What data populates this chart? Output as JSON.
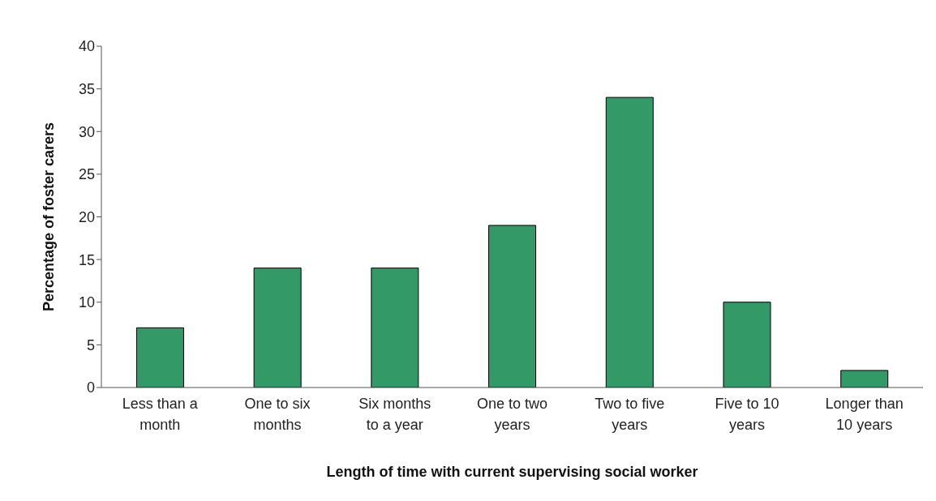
{
  "chart_data": {
    "type": "bar",
    "xlabel": "Length of time with current supervising social worker",
    "ylabel": "Percentage of foster carers",
    "categories": [
      "Less than a month",
      "One to six months",
      "Six months to a year",
      "One to two years",
      "Two to five years",
      "Five to 10 years",
      "Longer than 10 years"
    ],
    "values": [
      7,
      14,
      14,
      19,
      34,
      10,
      2
    ],
    "color": "#339966",
    "ylim": [
      0,
      40
    ],
    "yticks": [
      0,
      5,
      10,
      15,
      20,
      25,
      30,
      35,
      40
    ],
    "grid": false,
    "legend": false
  }
}
